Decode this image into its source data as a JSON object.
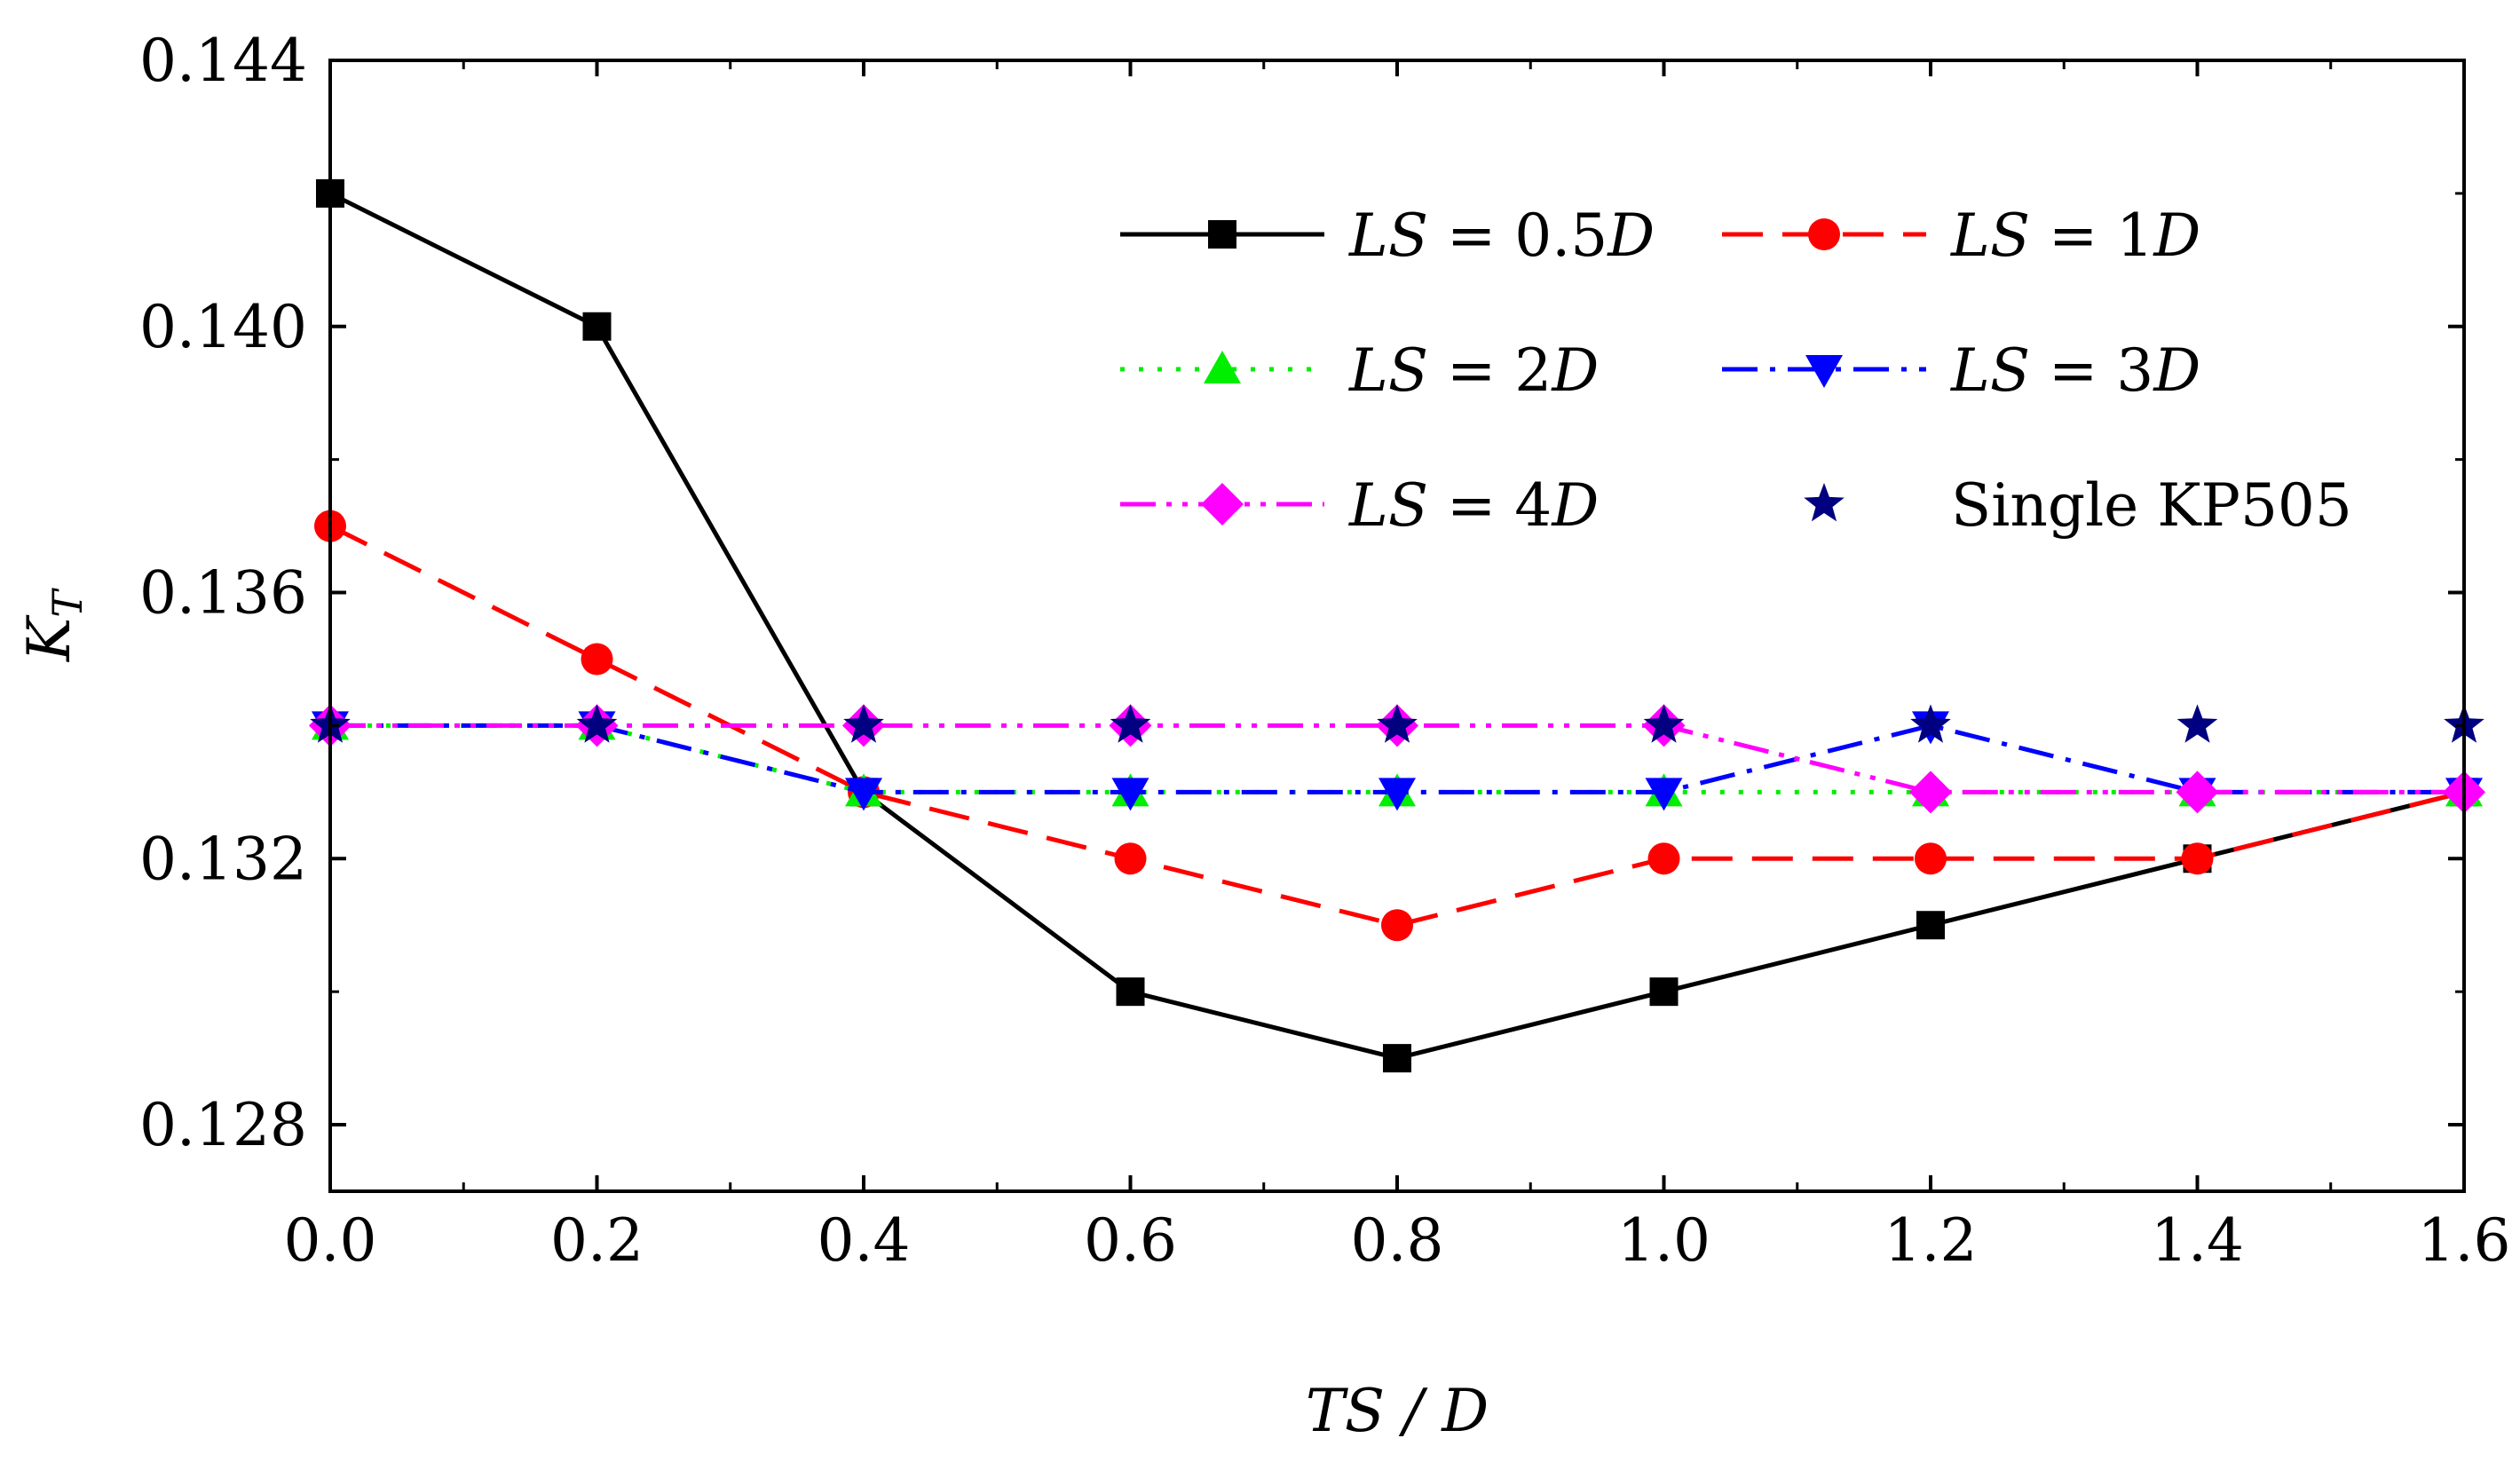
{
  "chart_data": {
    "type": "line",
    "xlabel": "TS / D",
    "ylabel": "K",
    "ylabel_subscript": "T",
    "xlim": [
      0.0,
      1.6
    ],
    "ylim": [
      0.127,
      0.144
    ],
    "x_ticks": [
      "0.0",
      "0.2",
      "0.4",
      "0.6",
      "0.8",
      "1.0",
      "1.2",
      "1.4",
      "1.6"
    ],
    "y_ticks": [
      "0.128",
      "0.132",
      "0.136",
      "0.140",
      "0.144"
    ],
    "grid": false,
    "legend_position": "top-right",
    "x": [
      0.0,
      0.2,
      0.4,
      0.6,
      0.8,
      1.0,
      1.2,
      1.4,
      1.6
    ],
    "series": [
      {
        "name": "LS = 0.5D",
        "name_prefix": "LS",
        "name_value": " = 0.5",
        "name_unit": "D",
        "color": "#000000",
        "marker": "square",
        "dash": "solid",
        "values": [
          0.142,
          0.14,
          0.133,
          0.13,
          0.129,
          0.13,
          0.131,
          0.132,
          0.133
        ]
      },
      {
        "name": "LS = 1D",
        "name_prefix": "LS",
        "name_value": " = 1",
        "name_unit": "D",
        "color": "#ff0000",
        "marker": "circle",
        "dash": "dashed",
        "values": [
          0.137,
          0.135,
          0.133,
          0.132,
          0.131,
          0.132,
          0.132,
          0.132,
          0.133
        ]
      },
      {
        "name": "LS = 2D",
        "name_prefix": "LS",
        "name_value": " = 2",
        "name_unit": "D",
        "color": "#00ee00",
        "marker": "triangle-up",
        "dash": "dotted",
        "values": [
          0.134,
          0.134,
          0.133,
          0.133,
          0.133,
          0.133,
          0.133,
          0.133,
          0.133
        ]
      },
      {
        "name": "LS = 3D",
        "name_prefix": "LS",
        "name_value": " = 3",
        "name_unit": "D",
        "color": "#0000ff",
        "marker": "triangle-down",
        "dash": "dash-dot",
        "values": [
          0.134,
          0.134,
          0.133,
          0.133,
          0.133,
          0.133,
          0.134,
          0.133,
          0.133
        ]
      },
      {
        "name": "LS = 4D",
        "name_prefix": "LS",
        "name_value": " = 4",
        "name_unit": "D",
        "color": "#ff00ff",
        "marker": "diamond",
        "dash": "dash-dot-dot",
        "values": [
          0.134,
          0.134,
          0.134,
          0.134,
          0.134,
          0.134,
          0.133,
          0.133,
          0.133
        ]
      },
      {
        "name": "Single KP505",
        "color": "#000080",
        "marker": "star",
        "dash": "none",
        "values": [
          0.134,
          0.134,
          0.134,
          0.134,
          0.134,
          0.134,
          0.134,
          0.134,
          0.134
        ]
      }
    ]
  }
}
